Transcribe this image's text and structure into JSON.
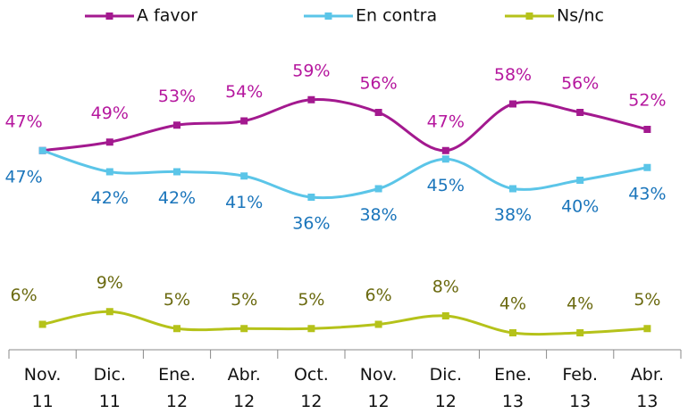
{
  "chart_data": {
    "type": "line",
    "categories": [
      "Nov. 11",
      "Dic. 11",
      "Ene. 12",
      "Abr. 12",
      "Oct. 12",
      "Nov. 12",
      "Dic. 12",
      "Ene. 13",
      "Feb. 13",
      "Abr. 13"
    ],
    "series": [
      {
        "name": "A favor",
        "color": "#a3198f",
        "label_color": "#b5179e",
        "values": [
          47,
          49,
          53,
          54,
          59,
          56,
          47,
          58,
          56,
          52
        ],
        "value_labels": [
          "47%",
          "49%",
          "53%",
          "54%",
          "59%",
          "56%",
          "47%",
          "58%",
          "56%",
          "52%"
        ]
      },
      {
        "name": "En contra",
        "color": "#5bc5e8",
        "label_color": "#1a75bb",
        "values": [
          47,
          42,
          42,
          41,
          36,
          38,
          45,
          38,
          40,
          43
        ],
        "value_labels": [
          "47%",
          "42%",
          "42%",
          "41%",
          "36%",
          "38%",
          "45%",
          "38%",
          "40%",
          "43%"
        ]
      },
      {
        "name": "Ns/nc",
        "color": "#b5c21a",
        "label_color": "#6b6a10",
        "values": [
          6,
          9,
          5,
          5,
          5,
          6,
          8,
          4,
          4,
          5
        ],
        "value_labels": [
          "6%",
          "9%",
          "5%",
          "5%",
          "5%",
          "6%",
          "8%",
          "4%",
          "4%",
          "5%"
        ]
      }
    ],
    "ylim": [
      0,
      65
    ],
    "legend": "top"
  }
}
